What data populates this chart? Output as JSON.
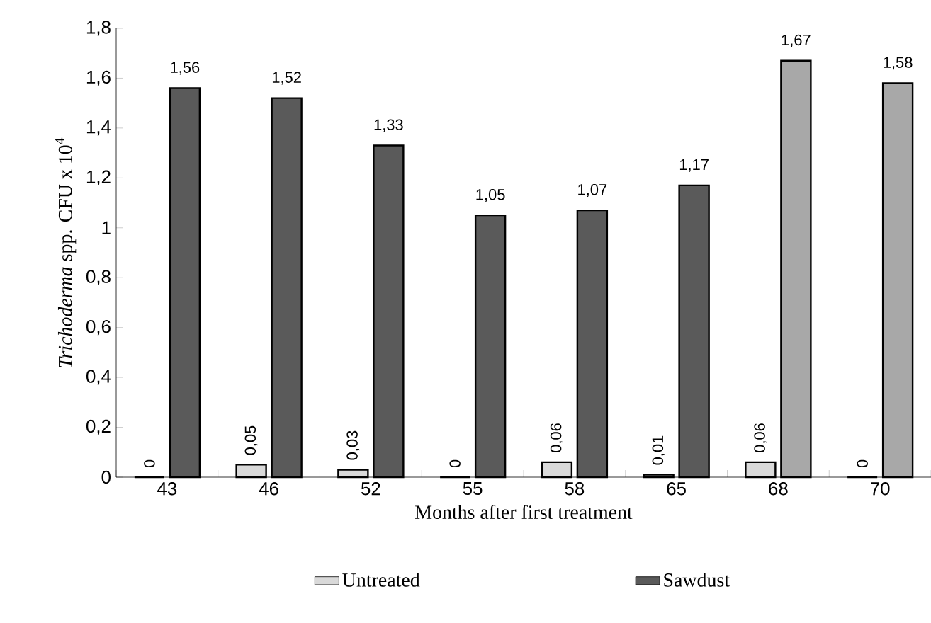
{
  "chart_data": {
    "type": "bar",
    "xlabel": "Months after first treatment",
    "ylabel": "*Trichoderma* spp. CFU x 10$^{4}$",
    "categories": [
      "43",
      "46",
      "52",
      "55",
      "58",
      "65",
      "68",
      "70"
    ],
    "series": [
      {
        "name": "Untreated",
        "color": "#d9d9d9",
        "values": [
          0,
          0.05,
          0.03,
          0,
          0.06,
          0.01,
          0.06,
          0
        ],
        "value_labels": [
          "0",
          "0,05",
          "0,03",
          "0",
          "0,06",
          "0,01",
          "0,06",
          "0"
        ]
      },
      {
        "name": "Sawdust",
        "color": "#5a5a5a",
        "colors": [
          "#5a5a5a",
          "#5a5a5a",
          "#5a5a5a",
          "#5a5a5a",
          "#5a5a5a",
          "#5a5a5a",
          "#a8a8a8",
          "#a8a8a8"
        ],
        "values": [
          1.56,
          1.52,
          1.33,
          1.05,
          1.07,
          1.17,
          1.67,
          1.58
        ],
        "value_labels": [
          "1,56",
          "1,52",
          "1,33",
          "1,05",
          "1,07",
          "1,17",
          "1,67",
          "1,58"
        ]
      }
    ],
    "ylim": [
      0,
      1.8
    ],
    "yticks": [
      0,
      {
        "value": 0.2,
        "label": "0,2"
      },
      {
        "value": 0.4,
        "label": "0,4"
      },
      {
        "value": 0.6,
        "label": "0,6"
      },
      {
        "value": 0.8,
        "label": "0,8"
      },
      1,
      {
        "value": 1.2,
        "label": "1,2"
      },
      {
        "value": 1.4,
        "label": "1,4"
      },
      {
        "value": 1.6,
        "label": "1,6"
      },
      {
        "value": 1.8,
        "label": "1,8"
      }
    ],
    "grid": false,
    "legend": "bottom"
  }
}
